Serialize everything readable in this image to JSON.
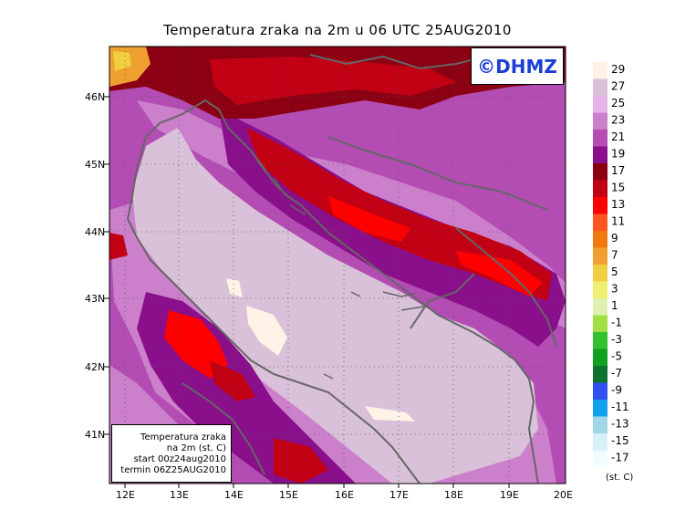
{
  "title": "Temperatura zraka na 2m u 06 UTC 25AUG2010",
  "logo_text": "©DHMZ",
  "info_box": {
    "line1": "Temperatura zraka",
    "line2": "na 2m (st. C)",
    "line3": "start 00z24aug2010",
    "line4": "termin 06Z25AUG2010"
  },
  "units": "(st. C)",
  "lat_labels": [
    "46N",
    "45N",
    "44N",
    "43N",
    "42N",
    "41N"
  ],
  "lon_labels": [
    "12E",
    "13E",
    "14E",
    "15E",
    "16E",
    "17E",
    "18E",
    "19E",
    "20E"
  ],
  "colorbar": {
    "labels": [
      "29",
      "27",
      "25",
      "23",
      "21",
      "19",
      "17",
      "15",
      "13",
      "11",
      "9",
      "7",
      "5",
      "3",
      "1",
      "-1",
      "-3",
      "-5",
      "-7",
      "-9",
      "-11",
      "-13",
      "-15",
      "-17"
    ],
    "colors": [
      "#fff2e6",
      "#d9c2d9",
      "#e8b3e8",
      "#cc80cc",
      "#b34db3",
      "#8a0f8a",
      "#8c0014",
      "#c20014",
      "#ff0000",
      "#ff5522",
      "#f07a10",
      "#f0a030",
      "#f0d040",
      "#f0f070",
      "#e0f0b0",
      "#a0e040",
      "#30c030",
      "#10a020",
      "#107030",
      "#3050f0",
      "#10a0f0",
      "#a0d8e8",
      "#d8f0f8",
      "#f0fcff"
    ]
  }
}
